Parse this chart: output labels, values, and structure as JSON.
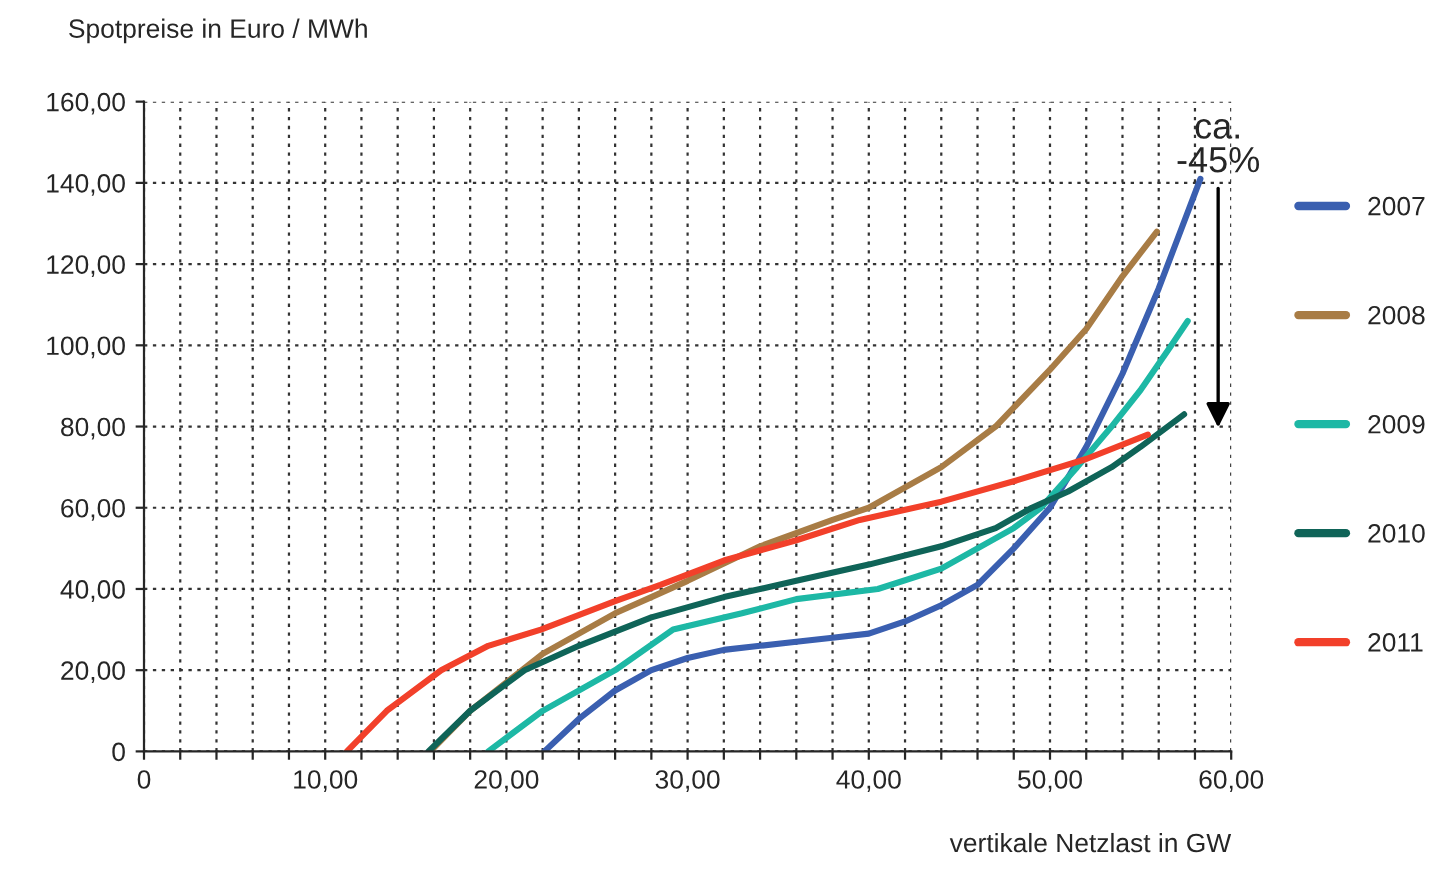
{
  "chart_data": {
    "type": "line",
    "ylabel": "Spotpreise in Euro / MWh",
    "xlabel": "vertikale Netzlast in GW",
    "xlim": [
      0,
      60
    ],
    "ylim": [
      0,
      160
    ],
    "xticks": [
      {
        "value": 0,
        "label": "0"
      },
      {
        "value": 2,
        "label": null
      },
      {
        "value": 4,
        "label": null
      },
      {
        "value": 6,
        "label": null
      },
      {
        "value": 8,
        "label": null
      },
      {
        "value": 10,
        "label": "10,00"
      },
      {
        "value": 12,
        "label": null
      },
      {
        "value": 14,
        "label": null
      },
      {
        "value": 16,
        "label": null
      },
      {
        "value": 18,
        "label": null
      },
      {
        "value": 20,
        "label": "20,00"
      },
      {
        "value": 22,
        "label": null
      },
      {
        "value": 24,
        "label": null
      },
      {
        "value": 26,
        "label": null
      },
      {
        "value": 28,
        "label": null
      },
      {
        "value": 30,
        "label": "30,00"
      },
      {
        "value": 32,
        "label": null
      },
      {
        "value": 34,
        "label": null
      },
      {
        "value": 36,
        "label": null
      },
      {
        "value": 38,
        "label": null
      },
      {
        "value": 40,
        "label": "40,00"
      },
      {
        "value": 42,
        "label": null
      },
      {
        "value": 44,
        "label": null
      },
      {
        "value": 46,
        "label": null
      },
      {
        "value": 48,
        "label": null
      },
      {
        "value": 50,
        "label": "50,00"
      },
      {
        "value": 52,
        "label": null
      },
      {
        "value": 54,
        "label": null
      },
      {
        "value": 56,
        "label": null
      },
      {
        "value": 58,
        "label": null
      },
      {
        "value": 60,
        "label": "60,00"
      }
    ],
    "yticks": [
      {
        "value": 0,
        "label": "0"
      },
      {
        "value": 20,
        "label": "20,00"
      },
      {
        "value": 40,
        "label": "40,00"
      },
      {
        "value": 60,
        "label": "60,00"
      },
      {
        "value": 80,
        "label": "80,00"
      },
      {
        "value": 100,
        "label": "100,00"
      },
      {
        "value": 120,
        "label": "120,00"
      },
      {
        "value": 140,
        "label": "140,00"
      },
      {
        "value": 160,
        "label": "160,00"
      }
    ],
    "grid": true,
    "legend": "right",
    "marker": "none",
    "line_style": "solid",
    "annotations": [
      "ca.\n-45%"
    ],
    "series": [
      {
        "name": "2007",
        "color": "#3a5fb0",
        "x": [
          22.1,
          24,
          26,
          28,
          30,
          32,
          34,
          36,
          38,
          40,
          42,
          44,
          46,
          48,
          50,
          52,
          54,
          56,
          58.3
        ],
        "values": [
          0,
          8,
          15,
          20,
          23,
          25,
          26,
          27,
          28,
          29,
          32,
          36,
          41,
          50,
          60,
          75,
          93,
          114,
          141
        ]
      },
      {
        "name": "2008",
        "color": "#a87c45",
        "x": [
          15.8,
          18,
          20,
          22,
          24,
          26,
          28,
          30,
          34,
          38,
          40,
          44,
          47,
          50,
          52,
          54,
          55.9
        ],
        "values": [
          0,
          10,
          17,
          24,
          29,
          34,
          38,
          42,
          50.5,
          57,
          60,
          70,
          80,
          94,
          104,
          117,
          128
        ]
      },
      {
        "name": "2009",
        "color": "#1db8a5",
        "x": [
          19,
          22,
          26,
          29.2,
          33,
          36,
          40.5,
          44,
          46,
          48,
          49.5,
          51.5,
          53.4,
          55,
          56.7,
          57.6
        ],
        "values": [
          0,
          10,
          20,
          30,
          34,
          37.5,
          40,
          45,
          50,
          55,
          60,
          70,
          80,
          89,
          100,
          106
        ]
      },
      {
        "name": "2010",
        "color": "#0f6458",
        "x": [
          15.7,
          18,
          21,
          24,
          28,
          32,
          36,
          40,
          44,
          47,
          49,
          51,
          53.4,
          55,
          57.4
        ],
        "values": [
          0,
          10,
          20,
          26,
          33,
          38,
          42,
          46,
          50.5,
          55,
          60,
          64,
          70,
          75,
          83
        ]
      },
      {
        "name": "2011",
        "color": "#f2402a",
        "x": [
          11.2,
          13.4,
          16.4,
          19,
          21.9,
          26,
          28.5,
          32,
          36,
          39.5,
          44,
          48.2,
          52,
          55.4
        ],
        "values": [
          0,
          10,
          20,
          26,
          30,
          37,
          41,
          47,
          52,
          57,
          61.5,
          66.8,
          72,
          78
        ]
      }
    ]
  }
}
